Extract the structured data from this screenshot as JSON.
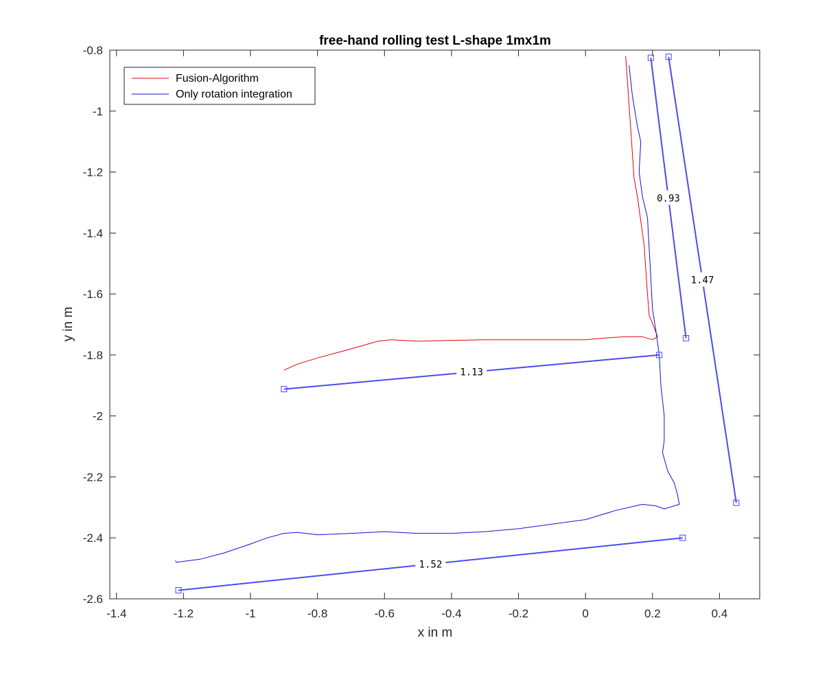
{
  "chart_data": {
    "type": "line",
    "title": "free-hand rolling test L-shape 1mx1m",
    "xlabel": "x in m",
    "ylabel": "y in m",
    "xlim": [
      -1.42,
      0.52
    ],
    "ylim": [
      -2.6,
      -0.8
    ],
    "x_ticks": [
      "-1.4",
      "-1.2",
      "-1",
      "-0.8",
      "-0.6",
      "-0.4",
      "-0.2",
      "0",
      "0.2",
      "0.4"
    ],
    "y_ticks": [
      "-0.8",
      "-1",
      "-1.2",
      "-1.4",
      "-1.6",
      "-1.8",
      "-2",
      "-2.2",
      "-2.4",
      "-2.6"
    ],
    "legend": {
      "location": "top-left"
    },
    "colors": {
      "fusion": "#e0000f",
      "rotation": "#1010d8",
      "measure": "#4a4af0",
      "axes": "#262626"
    },
    "series": [
      {
        "name": "Fusion-Algorithm",
        "color": "#e0000f",
        "points": [
          [
            0.12,
            -0.82
          ],
          [
            0.125,
            -0.9
          ],
          [
            0.13,
            -0.98
          ],
          [
            0.135,
            -1.06
          ],
          [
            0.14,
            -1.14
          ],
          [
            0.145,
            -1.22
          ],
          [
            0.155,
            -1.28
          ],
          [
            0.165,
            -1.36
          ],
          [
            0.175,
            -1.44
          ],
          [
            0.18,
            -1.52
          ],
          [
            0.185,
            -1.6
          ],
          [
            0.19,
            -1.67
          ],
          [
            0.205,
            -1.71
          ],
          [
            0.215,
            -1.74
          ],
          [
            0.2,
            -1.75
          ],
          [
            0.17,
            -1.74
          ],
          [
            0.12,
            -1.74
          ],
          [
            0.05,
            -1.745
          ],
          [
            0.0,
            -1.75
          ],
          [
            -0.1,
            -1.75
          ],
          [
            -0.2,
            -1.75
          ],
          [
            -0.3,
            -1.75
          ],
          [
            -0.4,
            -1.752
          ],
          [
            -0.5,
            -1.755
          ],
          [
            -0.58,
            -1.75
          ],
          [
            -0.62,
            -1.755
          ],
          [
            -0.7,
            -1.78
          ],
          [
            -0.8,
            -1.81
          ],
          [
            -0.86,
            -1.83
          ],
          [
            -0.9,
            -1.85
          ]
        ]
      },
      {
        "name": "Only rotation integration",
        "color": "#1010d8",
        "points": [
          [
            0.13,
            -0.85
          ],
          [
            0.14,
            -0.95
          ],
          [
            0.155,
            -1.05
          ],
          [
            0.165,
            -1.1
          ],
          [
            0.16,
            -1.2
          ],
          [
            0.17,
            -1.28
          ],
          [
            0.185,
            -1.35
          ],
          [
            0.19,
            -1.45
          ],
          [
            0.195,
            -1.55
          ],
          [
            0.2,
            -1.65
          ],
          [
            0.21,
            -1.72
          ],
          [
            0.22,
            -1.8
          ],
          [
            0.225,
            -1.9
          ],
          [
            0.235,
            -2.0
          ],
          [
            0.235,
            -2.08
          ],
          [
            0.23,
            -2.12
          ],
          [
            0.245,
            -2.18
          ],
          [
            0.265,
            -2.22
          ],
          [
            0.275,
            -2.26
          ],
          [
            0.28,
            -2.29
          ],
          [
            0.265,
            -2.295
          ],
          [
            0.25,
            -2.3
          ],
          [
            0.235,
            -2.305
          ],
          [
            0.21,
            -2.295
          ],
          [
            0.17,
            -2.29
          ],
          [
            0.09,
            -2.31
          ],
          [
            0.0,
            -2.34
          ],
          [
            -0.1,
            -2.355
          ],
          [
            -0.2,
            -2.37
          ],
          [
            -0.3,
            -2.38
          ],
          [
            -0.4,
            -2.385
          ],
          [
            -0.5,
            -2.385
          ],
          [
            -0.6,
            -2.38
          ],
          [
            -0.7,
            -2.385
          ],
          [
            -0.8,
            -2.39
          ],
          [
            -0.86,
            -2.382
          ],
          [
            -0.9,
            -2.385
          ],
          [
            -0.95,
            -2.4
          ],
          [
            -1.0,
            -2.42
          ],
          [
            -1.08,
            -2.45
          ],
          [
            -1.15,
            -2.47
          ],
          [
            -1.22,
            -2.48
          ],
          [
            -1.225,
            -2.475
          ]
        ]
      }
    ],
    "measurements": [
      {
        "label": "0.93",
        "from": [
          0.195,
          -0.825
        ],
        "to": [
          0.3,
          -1.745
        ]
      },
      {
        "label": "1.47",
        "from": [
          0.248,
          -0.822
        ],
        "to": [
          0.45,
          -2.285
        ]
      },
      {
        "label": "1.13",
        "from": [
          -0.9,
          -1.912
        ],
        "to": [
          0.22,
          -1.8
        ]
      },
      {
        "label": "1.52",
        "from": [
          -1.215,
          -2.572
        ],
        "to": [
          0.29,
          -2.4
        ]
      }
    ]
  }
}
